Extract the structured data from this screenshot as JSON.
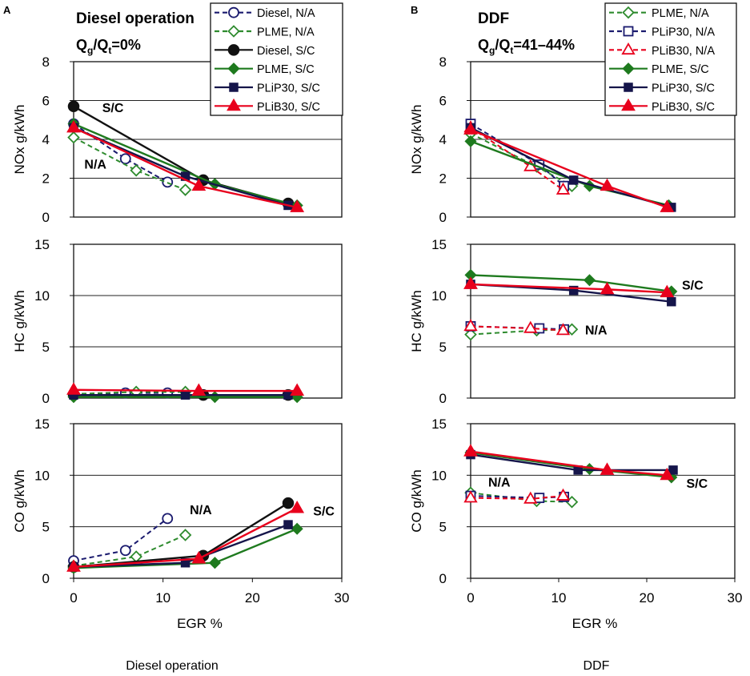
{
  "chart_data": [
    {
      "panel_letter": "A",
      "type": "line",
      "title": "Diesel operation",
      "gas_ratio": {
        "label": "Q",
        "sub1": "g",
        "mid": "/Q",
        "sub2": "t",
        "value": "=0%"
      },
      "caption": "Diesel operation",
      "xlabel": "EGR  %",
      "xlim": [
        0,
        30
      ],
      "xticks": [
        "0",
        "10",
        "20",
        "30"
      ],
      "legend": [
        {
          "series": "diesel_na",
          "label": "Diesel, N/A"
        },
        {
          "series": "plme_na",
          "label": "PLME, N/A"
        },
        {
          "series": "diesel_sc",
          "label": "Diesel, S/C"
        },
        {
          "series": "plme_sc",
          "label": "PLME, S/C"
        },
        {
          "series": "plip30_sc",
          "label": "PLiP30, S/C"
        },
        {
          "series": "plib30_sc",
          "label": "PLiB30, S/C"
        }
      ],
      "subplots": [
        {
          "id": "nox",
          "ylabel": "NOx  g/kWh",
          "ylim": [
            0,
            8
          ],
          "yticks": [
            "0",
            "2",
            "4",
            "6",
            "8"
          ],
          "series": [
            {
              "key": "diesel_na",
              "x": [
                0,
                5.8,
                10.5
              ],
              "y": [
                4.8,
                3.0,
                1.8
              ]
            },
            {
              "key": "plme_na",
              "x": [
                0,
                7,
                12.5
              ],
              "y": [
                4.1,
                2.4,
                1.4
              ]
            },
            {
              "key": "diesel_sc",
              "x": [
                0,
                14.5,
                24
              ],
              "y": [
                5.7,
                1.9,
                0.7
              ]
            },
            {
              "key": "plme_sc",
              "x": [
                0,
                15.8,
                25
              ],
              "y": [
                4.8,
                1.7,
                0.6
              ]
            },
            {
              "key": "plip30_sc",
              "x": [
                0,
                12.5,
                24
              ],
              "y": [
                4.6,
                2.1,
                0.6
              ]
            },
            {
              "key": "plib30_sc",
              "x": [
                0,
                14,
                25
              ],
              "y": [
                4.6,
                1.6,
                0.5
              ]
            }
          ],
          "annotations": [
            {
              "text": "S/C",
              "x": 3.2,
              "y": 5.4
            },
            {
              "text": "N/A",
              "x": 1.2,
              "y": 2.5
            }
          ]
        },
        {
          "id": "hc",
          "ylabel": "HC  g/kWh",
          "ylim": [
            0,
            15
          ],
          "yticks": [
            "0",
            "5",
            "10",
            "15"
          ],
          "series": [
            {
              "key": "diesel_na",
              "x": [
                0,
                5.8,
                10.5
              ],
              "y": [
                0.4,
                0.5,
                0.5
              ]
            },
            {
              "key": "plme_na",
              "x": [
                0,
                7,
                12.5
              ],
              "y": [
                0.4,
                0.6,
                0.6
              ]
            },
            {
              "key": "diesel_sc",
              "x": [
                0,
                14.5,
                24
              ],
              "y": [
                0.3,
                0.3,
                0.3
              ]
            },
            {
              "key": "plme_sc",
              "x": [
                0,
                15.8,
                25
              ],
              "y": [
                0.1,
                0.1,
                0.1
              ]
            },
            {
              "key": "plip30_sc",
              "x": [
                0,
                12.5,
                24
              ],
              "y": [
                0.3,
                0.3,
                0.3
              ]
            },
            {
              "key": "plib30_sc",
              "x": [
                0,
                14,
                25
              ],
              "y": [
                0.8,
                0.7,
                0.7
              ]
            }
          ],
          "annotations": []
        },
        {
          "id": "co",
          "ylabel": "CO  g/kWh",
          "ylim": [
            0,
            15
          ],
          "yticks": [
            "0",
            "5",
            "10",
            "15"
          ],
          "series": [
            {
              "key": "diesel_na",
              "x": [
                0,
                5.8,
                10.5
              ],
              "y": [
                1.7,
                2.7,
                5.8
              ]
            },
            {
              "key": "plme_na",
              "x": [
                0,
                7,
                12.5
              ],
              "y": [
                1.2,
                2.1,
                4.2
              ]
            },
            {
              "key": "diesel_sc",
              "x": [
                0,
                14.5,
                24
              ],
              "y": [
                1.1,
                2.2,
                7.3
              ]
            },
            {
              "key": "plme_sc",
              "x": [
                0,
                15.8,
                25
              ],
              "y": [
                1.0,
                1.5,
                4.8
              ]
            },
            {
              "key": "plip30_sc",
              "x": [
                0,
                12.5,
                24
              ],
              "y": [
                1.1,
                1.5,
                5.2
              ]
            },
            {
              "key": "plib30_sc",
              "x": [
                0,
                14,
                25
              ],
              "y": [
                1.1,
                1.9,
                6.8
              ]
            }
          ],
          "annotations": [
            {
              "text": "N/A",
              "x": 13,
              "y": 6.2
            },
            {
              "text": "S/C",
              "x": 26.8,
              "y": 6.1
            }
          ]
        }
      ]
    },
    {
      "panel_letter": "B",
      "type": "line",
      "title": "DDF",
      "gas_ratio": {
        "label": "Q",
        "sub1": "g",
        "mid": "/Q",
        "sub2": "t",
        "value": "=41–44%"
      },
      "caption": "DDF",
      "xlabel": "EGR  %",
      "xlim": [
        0,
        30
      ],
      "xticks": [
        "0",
        "10",
        "20",
        "30"
      ],
      "legend": [
        {
          "series": "plme_na",
          "label": "PLME, N/A"
        },
        {
          "series": "plip30_na",
          "label": "PLiP30, N/A"
        },
        {
          "series": "plib30_na",
          "label": "PLiB30, N/A"
        },
        {
          "series": "plme_sc",
          "label": "PLME, S/C"
        },
        {
          "series": "plip30_sc",
          "label": "PLiP30, S/C"
        },
        {
          "series": "plib30_sc",
          "label": "PLiB30, S/C"
        }
      ],
      "subplots": [
        {
          "id": "nox",
          "ylabel": "NOx  g/kWh",
          "ylim": [
            0,
            8
          ],
          "yticks": [
            "0",
            "2",
            "4",
            "6",
            "8"
          ],
          "series": [
            {
              "key": "plme_na",
              "x": [
                0,
                7.5,
                11.5
              ],
              "y": [
                4.3,
                2.6,
                1.6
              ]
            },
            {
              "key": "plip30_na",
              "x": [
                0,
                7.8,
                10.6
              ],
              "y": [
                4.8,
                2.7,
                1.6
              ]
            },
            {
              "key": "plib30_na",
              "x": [
                0,
                6.8,
                10.5
              ],
              "y": [
                4.6,
                2.6,
                1.4
              ]
            },
            {
              "key": "plme_sc",
              "x": [
                0,
                13.5,
                22.5
              ],
              "y": [
                3.9,
                1.6,
                0.6
              ]
            },
            {
              "key": "plip30_sc",
              "x": [
                0,
                11.7,
                22.8
              ],
              "y": [
                4.6,
                1.9,
                0.5
              ]
            },
            {
              "key": "plib30_sc",
              "x": [
                0,
                15.5,
                22.3
              ],
              "y": [
                4.5,
                1.6,
                0.5
              ]
            }
          ],
          "annotations": []
        },
        {
          "id": "hc",
          "ylabel": "HC  g/kWh",
          "ylim": [
            0,
            15
          ],
          "yticks": [
            "0",
            "5",
            "10",
            "15"
          ],
          "series": [
            {
              "key": "plme_na",
              "x": [
                0,
                7.5,
                11.5
              ],
              "y": [
                6.2,
                6.6,
                6.7
              ]
            },
            {
              "key": "plip30_na",
              "x": [
                0,
                7.8,
                10.6
              ],
              "y": [
                7.0,
                6.8,
                6.7
              ]
            },
            {
              "key": "plib30_na",
              "x": [
                0,
                6.8,
                10.5
              ],
              "y": [
                7.0,
                6.8,
                6.6
              ]
            },
            {
              "key": "plme_sc",
              "x": [
                0,
                13.5,
                22.8
              ],
              "y": [
                12.0,
                11.5,
                10.4
              ]
            },
            {
              "key": "plip30_sc",
              "x": [
                0,
                11.7,
                22.8
              ],
              "y": [
                11.1,
                10.5,
                9.4
              ]
            },
            {
              "key": "plib30_sc",
              "x": [
                0,
                15.5,
                22.3
              ],
              "y": [
                11.1,
                10.6,
                10.3
              ]
            }
          ],
          "annotations": [
            {
              "text": "S/C",
              "x": 24,
              "y": 10.6
            },
            {
              "text": "N/A",
              "x": 13,
              "y": 6.2
            }
          ]
        },
        {
          "id": "co",
          "ylabel": "CO  g/kWh",
          "ylim": [
            0,
            15
          ],
          "yticks": [
            "0",
            "5",
            "10",
            "15"
          ],
          "series": [
            {
              "key": "plme_na",
              "x": [
                0,
                7.5,
                11.5
              ],
              "y": [
                8.3,
                7.5,
                7.4
              ]
            },
            {
              "key": "plip30_na",
              "x": [
                0,
                7.8,
                10.6
              ],
              "y": [
                8.0,
                7.8,
                7.9
              ]
            },
            {
              "key": "plib30_na",
              "x": [
                0,
                6.8,
                10.5
              ],
              "y": [
                7.8,
                7.7,
                8.0
              ]
            },
            {
              "key": "plme_sc",
              "x": [
                0,
                13.5,
                22.8
              ],
              "y": [
                12.2,
                10.6,
                9.8
              ]
            },
            {
              "key": "plip30_sc",
              "x": [
                0,
                12.2,
                23
              ],
              "y": [
                12.0,
                10.5,
                10.5
              ]
            },
            {
              "key": "plib30_sc",
              "x": [
                0,
                15.5,
                22.3
              ],
              "y": [
                12.3,
                10.5,
                10.0
              ]
            }
          ],
          "annotations": [
            {
              "text": "N/A",
              "x": 2,
              "y": 8.9
            },
            {
              "text": "S/C",
              "x": 24.5,
              "y": 8.8
            }
          ]
        }
      ]
    }
  ],
  "series_styles": {
    "diesel_na": {
      "color": "#1a1a6e",
      "dashed": true,
      "marker": "circle",
      "filled": false
    },
    "plme_na": {
      "color": "#2e8b2e",
      "dashed": true,
      "marker": "diamond",
      "filled": false
    },
    "plip30_na": {
      "color": "#1a1a6e",
      "dashed": true,
      "marker": "square",
      "filled": false
    },
    "plib30_na": {
      "color": "#e8001c",
      "dashed": true,
      "marker": "triangle",
      "filled": false
    },
    "diesel_sc": {
      "color": "#111111",
      "dashed": false,
      "marker": "circle",
      "filled": true
    },
    "plme_sc": {
      "color": "#1e7a1e",
      "dashed": false,
      "marker": "diamond",
      "filled": true
    },
    "plip30_sc": {
      "color": "#15154a",
      "dashed": false,
      "marker": "square",
      "filled": true
    },
    "plib30_sc": {
      "color": "#e8001c",
      "dashed": false,
      "marker": "triangle",
      "filled": true
    }
  }
}
